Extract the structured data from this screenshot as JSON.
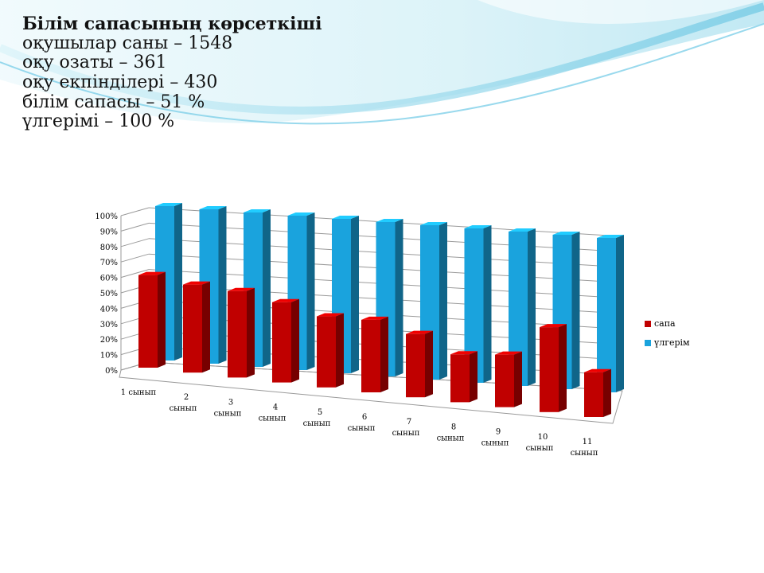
{
  "header": {
    "title": "Білім сапасының көрсеткіші",
    "lines": [
      "оқушылар саны – 1548",
      "оқу озаты – 361",
      "оқу екпінділері – 430",
      "білім сапасы – 51 %",
      "үлгерімі – 100 %"
    ]
  },
  "chart_data": {
    "type": "bar",
    "categories": [
      [
        "1 сынып"
      ],
      [
        "2",
        "сынып"
      ],
      [
        "3",
        "сынып"
      ],
      [
        "4",
        "сынып"
      ],
      [
        "5",
        "сынып"
      ],
      [
        "6",
        "сынып"
      ],
      [
        "7",
        "сынып"
      ],
      [
        "8",
        "сынып"
      ],
      [
        "9",
        "сынып"
      ],
      [
        "10",
        "сынып"
      ],
      [
        "11",
        "сынып"
      ]
    ],
    "series": [
      {
        "name": "сапа",
        "color": "#c00000",
        "values": [
          60,
          57,
          56,
          52,
          46,
          47,
          41,
          31,
          34,
          55,
          29
        ]
      },
      {
        "name": "үлгерім",
        "color": "#1aa3dd",
        "values": [
          100,
          100,
          100,
          100,
          100,
          100,
          100,
          100,
          100,
          100,
          100
        ]
      }
    ],
    "yticks": [
      "0%",
      "10%",
      "20%",
      "30%",
      "40%",
      "50%",
      "60%",
      "70%",
      "80%",
      "90%",
      "100%"
    ],
    "ylim": [
      0,
      100
    ],
    "grid": true,
    "legend_position": "right",
    "three_d": true
  }
}
